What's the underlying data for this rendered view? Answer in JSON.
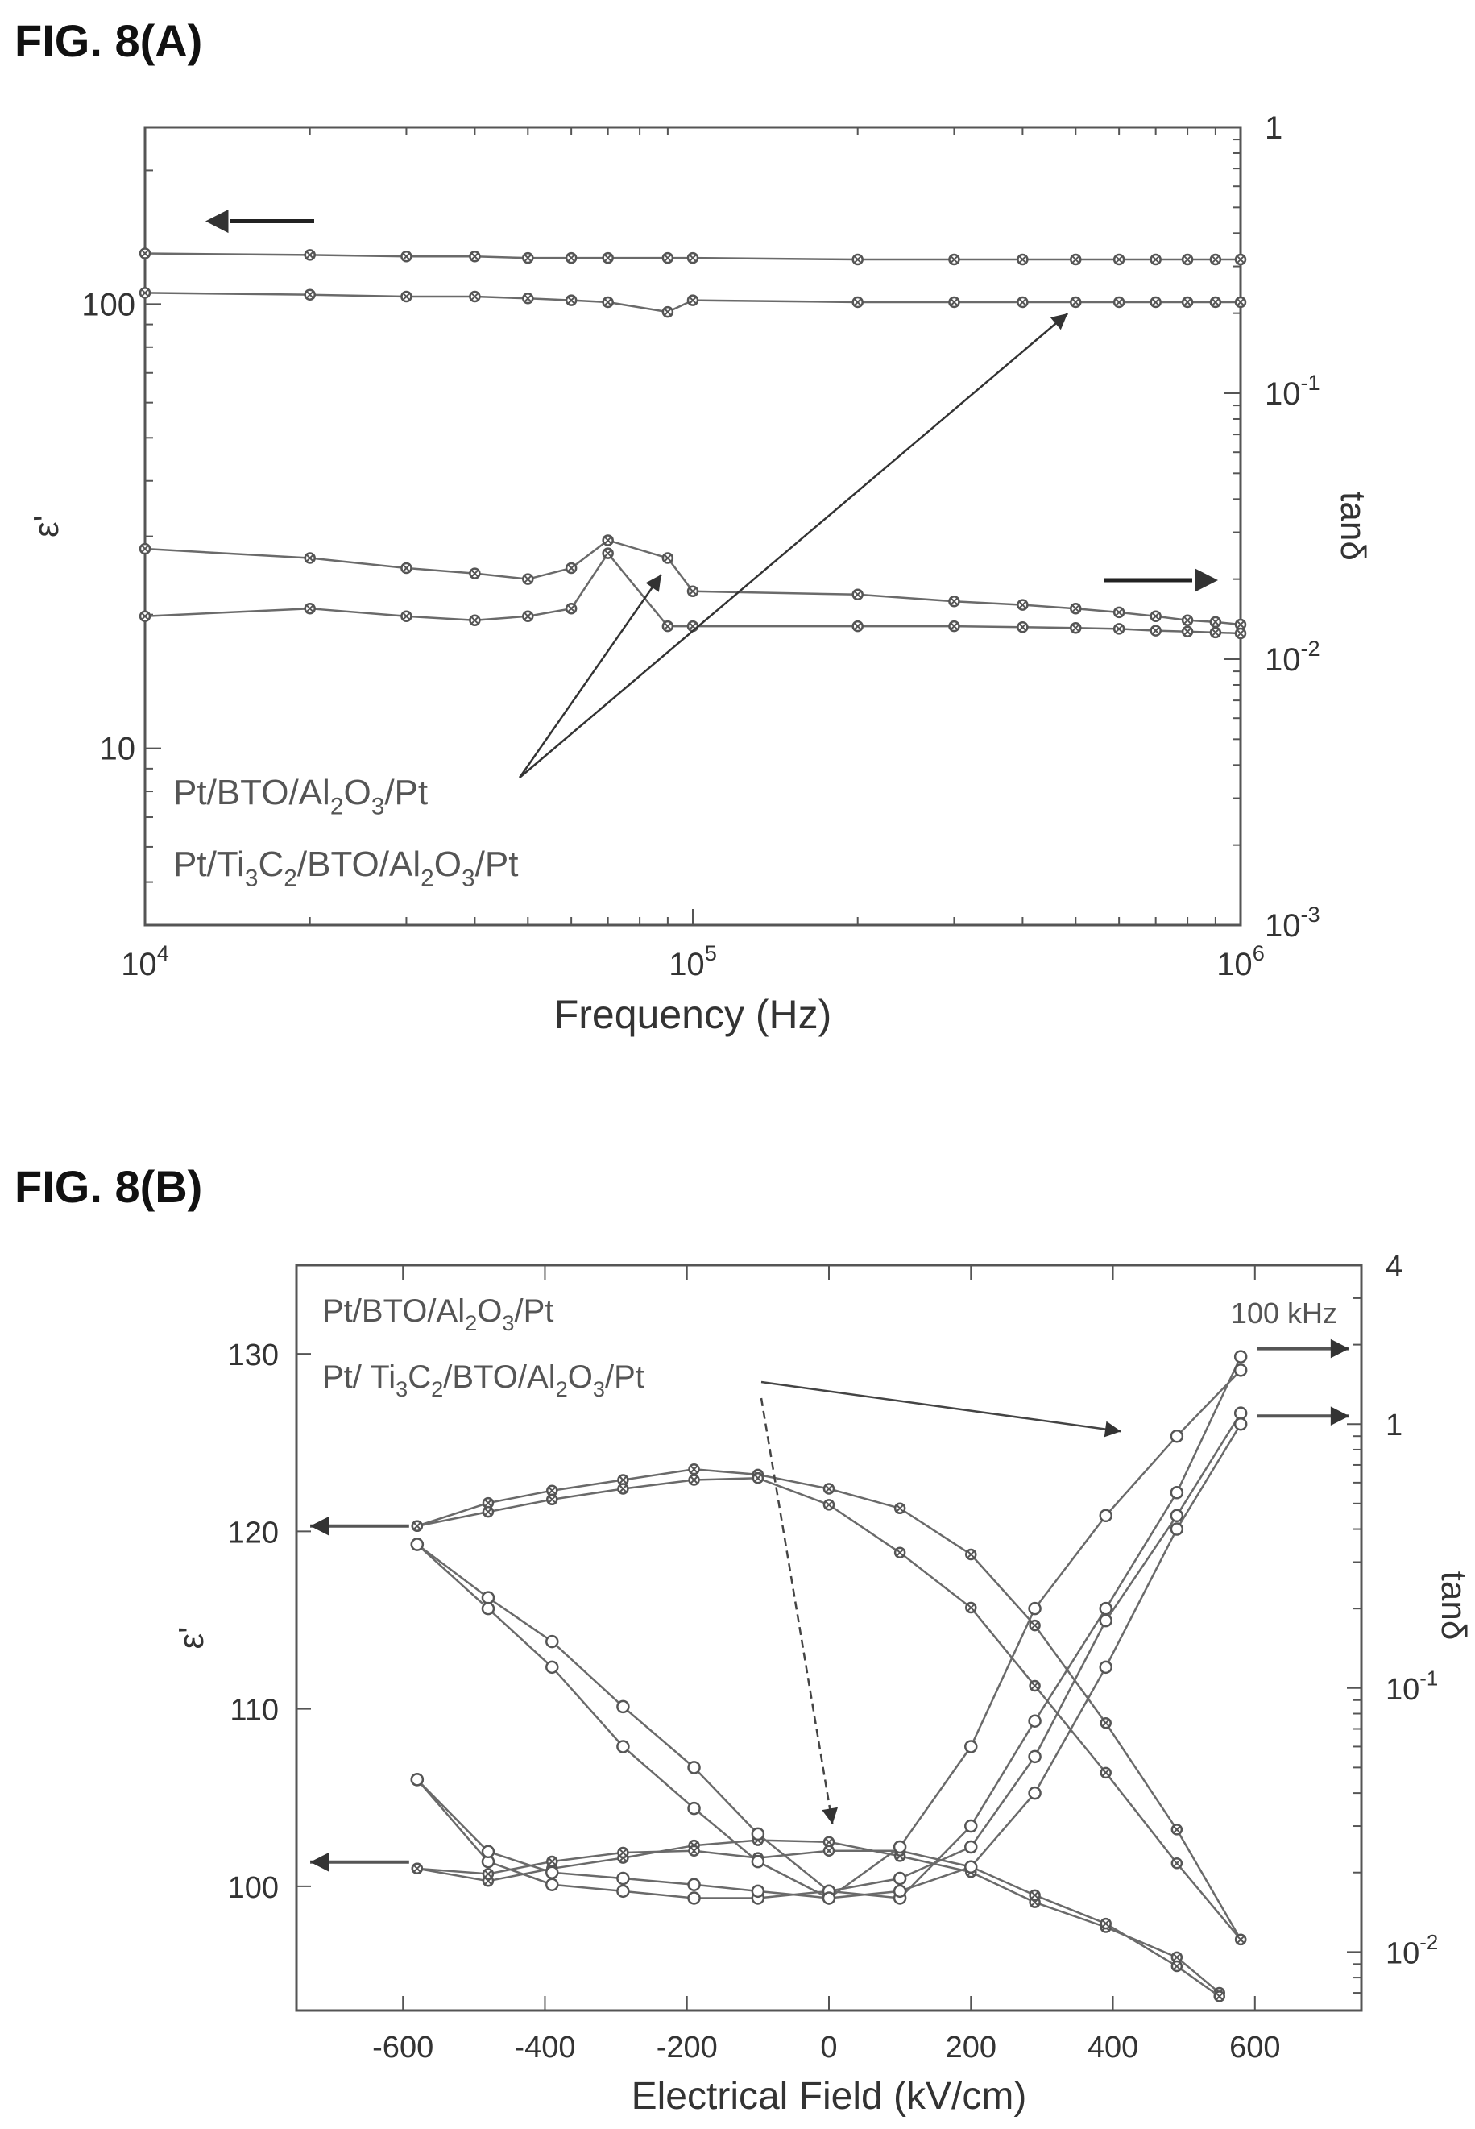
{
  "figures": {
    "a_label": "FIG. 8(A)",
    "b_label": "FIG. 8(B)"
  },
  "chart_data": [
    {
      "type": "line",
      "xlabel": "Frequency (Hz)",
      "ylabel_left": "ε'",
      "ylabel_right": "tanδ",
      "x_scale": "log",
      "y_left_scale": "log",
      "y_right_scale": "log",
      "xlim": [
        10000,
        1000000
      ],
      "ylim_left": [
        4,
        250
      ],
      "ylim_right": [
        0.001,
        1
      ],
      "x_ticks": [
        {
          "value": 10000,
          "base": "10",
          "exp": "4"
        },
        {
          "value": 100000,
          "base": "10",
          "exp": "5"
        },
        {
          "value": 1000000,
          "base": "10",
          "exp": "6"
        }
      ],
      "y_left_ticks": [
        {
          "value": 10,
          "label": "10"
        },
        {
          "value": 100,
          "label": "100"
        }
      ],
      "y_right_ticks": [
        {
          "value": 1,
          "base": "1",
          "exp": ""
        },
        {
          "value": 0.1,
          "base": "10",
          "exp": "-1"
        },
        {
          "value": 0.01,
          "base": "10",
          "exp": "-2"
        },
        {
          "value": 0.001,
          "base": "10",
          "exp": "-3"
        }
      ],
      "legend": [
        {
          "parts": [
            [
              "Pt/BTO/Al",
              ""
            ],
            [
              "2",
              "sub"
            ],
            [
              "O",
              ""
            ],
            [
              "3",
              "sub"
            ],
            [
              "/Pt",
              ""
            ]
          ]
        },
        {
          "parts": [
            [
              "Pt/Ti",
              ""
            ],
            [
              "3",
              "sub"
            ],
            [
              "C",
              ""
            ],
            [
              "2",
              "sub"
            ],
            [
              "/BTO/Al",
              ""
            ],
            [
              "2",
              "sub"
            ],
            [
              "O",
              ""
            ],
            [
              "3",
              "sub"
            ],
            [
              "/Pt",
              ""
            ]
          ]
        }
      ],
      "series": [
        {
          "axis": "left",
          "x": [
            10000,
            20000,
            30000,
            40000,
            50000,
            60000,
            70000,
            90000,
            100000,
            200000,
            300000,
            400000,
            500000,
            600000,
            700000,
            800000,
            900000,
            1000000
          ],
          "y": [
            130,
            129,
            128,
            128,
            127,
            127,
            127,
            127,
            127,
            126,
            126,
            126,
            126,
            126,
            126,
            126,
            126,
            126
          ]
        },
        {
          "axis": "left",
          "x": [
            10000,
            20000,
            30000,
            40000,
            50000,
            60000,
            70000,
            90000,
            100000,
            200000,
            300000,
            400000,
            500000,
            600000,
            700000,
            800000,
            900000,
            1000000
          ],
          "y": [
            106,
            105,
            104,
            104,
            103,
            102,
            101,
            96,
            102,
            101,
            101,
            101,
            101,
            101,
            101,
            101,
            101,
            101
          ]
        },
        {
          "axis": "right",
          "x": [
            10000,
            20000,
            30000,
            40000,
            50000,
            60000,
            70000,
            90000,
            100000,
            200000,
            300000,
            400000,
            500000,
            600000,
            700000,
            800000,
            900000,
            1000000
          ],
          "y": [
            0.026,
            0.024,
            0.022,
            0.021,
            0.02,
            0.022,
            0.028,
            0.024,
            0.018,
            0.0175,
            0.0165,
            0.016,
            0.0155,
            0.015,
            0.0145,
            0.014,
            0.0138,
            0.0135
          ]
        },
        {
          "axis": "right",
          "x": [
            10000,
            20000,
            30000,
            40000,
            50000,
            60000,
            70000,
            90000,
            100000,
            200000,
            300000,
            400000,
            500000,
            600000,
            700000,
            800000,
            900000,
            1000000
          ],
          "y": [
            0.0145,
            0.0155,
            0.0145,
            0.014,
            0.0145,
            0.0155,
            0.025,
            0.0133,
            0.0133,
            0.0133,
            0.0133,
            0.0132,
            0.0131,
            0.013,
            0.0128,
            0.0127,
            0.0126,
            0.0125
          ]
        }
      ]
    },
    {
      "type": "line",
      "xlabel": "Electrical Field (kV/cm)",
      "ylabel_left": "ε'",
      "ylabel_right": "tanδ",
      "x_scale": "linear",
      "y_left_scale": "linear",
      "y_right_scale": "log",
      "xlim": [
        -750,
        750
      ],
      "ylim_left": [
        93,
        135
      ],
      "ylim_right": [
        0.006,
        4
      ],
      "x_ticks": [
        -600,
        -400,
        -200,
        0,
        200,
        400,
        600
      ],
      "y_left_ticks": [
        100,
        110,
        120,
        130
      ],
      "y_right_ticks": [
        {
          "value": 4,
          "base": "4",
          "exp": ""
        },
        {
          "value": 1,
          "base": "1",
          "exp": ""
        },
        {
          "value": 0.1,
          "base": "10",
          "exp": "-1"
        },
        {
          "value": 0.01,
          "base": "10",
          "exp": "-2"
        }
      ],
      "annotation": "100 kHz",
      "legend": [
        {
          "parts": [
            [
              "Pt/BTO/Al",
              ""
            ],
            [
              "2",
              "sub"
            ],
            [
              "O",
              ""
            ],
            [
              "3",
              "sub"
            ],
            [
              "/Pt",
              ""
            ]
          ]
        },
        {
          "parts": [
            [
              "Pt/ Ti",
              ""
            ],
            [
              "3",
              "sub"
            ],
            [
              "C",
              ""
            ],
            [
              "2",
              "sub"
            ],
            [
              "/BTO/Al",
              ""
            ],
            [
              "2",
              "sub"
            ],
            [
              "O",
              ""
            ],
            [
              "3",
              "sub"
            ],
            [
              "/Pt",
              ""
            ]
          ]
        }
      ],
      "series": [
        {
          "axis": "left",
          "marker": "x",
          "x": [
            -580,
            -480,
            -390,
            -290,
            -190,
            -100,
            0,
            100,
            200,
            290,
            390,
            490,
            580
          ],
          "y": [
            120.3,
            121.6,
            122.3,
            122.9,
            123.5,
            123.2,
            122.4,
            121.3,
            118.7,
            114.7,
            109.2,
            103.2,
            97.0
          ]
        },
        {
          "axis": "left",
          "marker": "x",
          "x": [
            -580,
            -480,
            -390,
            -290,
            -190,
            -100,
            0,
            100,
            200,
            290,
            390,
            490,
            580
          ],
          "y": [
            120.3,
            121.1,
            121.8,
            122.4,
            122.9,
            123.0,
            121.5,
            118.8,
            115.7,
            111.3,
            106.4,
            101.3,
            97.0
          ]
        },
        {
          "axis": "left",
          "marker": "x",
          "x": [
            -580,
            -480,
            -390,
            -290,
            -190,
            -100,
            0,
            100,
            200,
            290,
            390,
            490,
            550
          ],
          "y": [
            101.0,
            100.3,
            101.0,
            101.6,
            102.3,
            102.6,
            102.5,
            101.7,
            100.8,
            99.1,
            97.7,
            96.0,
            94.0
          ]
        },
        {
          "axis": "left",
          "marker": "x",
          "x": [
            -580,
            -480,
            -390,
            -290,
            -190,
            -100,
            0,
            100,
            200,
            290,
            390,
            490,
            550
          ],
          "y": [
            101.0,
            100.7,
            101.4,
            101.9,
            102.0,
            101.6,
            102.0,
            102.0,
            101.1,
            99.5,
            97.9,
            95.5,
            93.8
          ]
        },
        {
          "axis": "right",
          "marker": "o",
          "x": [
            -580,
            -480,
            -390,
            -290,
            -190,
            -100,
            0,
            100,
            200,
            290,
            390,
            490,
            580
          ],
          "y": [
            0.35,
            0.22,
            0.15,
            0.085,
            0.05,
            0.028,
            0.017,
            0.016,
            0.03,
            0.075,
            0.2,
            0.55,
            1.8
          ]
        },
        {
          "axis": "right",
          "marker": "o",
          "x": [
            -580,
            -480,
            -390,
            -290,
            -190,
            -100,
            0,
            100,
            200,
            290,
            390,
            490,
            580
          ],
          "y": [
            0.35,
            0.2,
            0.12,
            0.06,
            0.035,
            0.022,
            0.016,
            0.025,
            0.06,
            0.2,
            0.45,
            0.9,
            1.6
          ]
        },
        {
          "axis": "right",
          "marker": "o",
          "x": [
            -580,
            -480,
            -390,
            -290,
            -190,
            -100,
            0,
            100,
            200,
            290,
            390,
            490,
            580
          ],
          "y": [
            0.045,
            0.022,
            0.018,
            0.017,
            0.016,
            0.016,
            0.017,
            0.019,
            0.025,
            0.055,
            0.18,
            0.45,
            1.1
          ]
        },
        {
          "axis": "right",
          "marker": "o",
          "x": [
            -580,
            -480,
            -390,
            -290,
            -190,
            -100,
            0,
            100,
            200,
            290,
            390,
            490,
            580
          ],
          "y": [
            0.045,
            0.024,
            0.02,
            0.019,
            0.018,
            0.017,
            0.016,
            0.017,
            0.021,
            0.04,
            0.12,
            0.4,
            1.0
          ]
        }
      ]
    }
  ]
}
